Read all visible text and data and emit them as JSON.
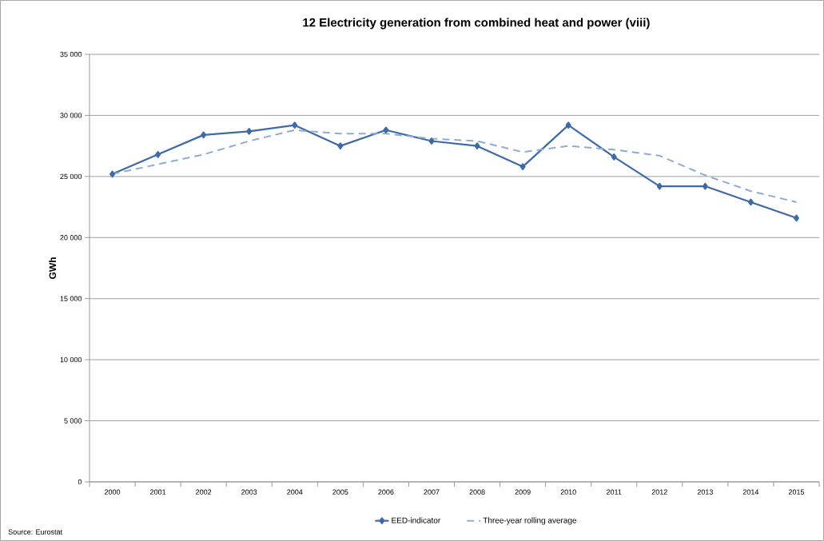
{
  "chart_data": {
    "type": "line",
    "title": "12 Electricity generation from combined heat and power (viii)",
    "ylabel": "GWh",
    "categories": [
      "2000",
      "2001",
      "2002",
      "2003",
      "2004",
      "2005",
      "2006",
      "2007",
      "2008",
      "2009",
      "2010",
      "2011",
      "2012",
      "2013",
      "2014",
      "2015"
    ],
    "series": [
      {
        "name": "EED-indicator",
        "color": "#3e6aa6",
        "marker": "diamond",
        "line_style": "solid",
        "values": [
          25200,
          26800,
          28400,
          28700,
          29200,
          27500,
          28800,
          27900,
          27500,
          25800,
          29200,
          26600,
          24200,
          24200,
          22900,
          21600
        ]
      },
      {
        "name": "Three-year rolling average",
        "color": "#8eaad8",
        "marker": "none",
        "line_style": "dashed",
        "values": [
          25200,
          26000,
          26800,
          27900,
          28800,
          28500,
          28500,
          28100,
          27900,
          27000,
          27500,
          27200,
          26700,
          25100,
          23800,
          22900
        ]
      }
    ],
    "ylim": [
      0,
      35000
    ],
    "yticks": [
      0,
      {
        "value": 5000,
        "label": "5 000"
      },
      {
        "value": 10000,
        "label": "10 000"
      },
      {
        "value": 15000,
        "label": "15 000"
      },
      {
        "value": 20000,
        "label": "20 000"
      },
      {
        "value": 25000,
        "label": "25 000"
      },
      {
        "value": 30000,
        "label": "30 000"
      },
      {
        "value": 35000,
        "label": "35 000"
      }
    ],
    "grid": "y",
    "legend": "bottom",
    "annotations": [
      "Source: Eurostat"
    ]
  }
}
